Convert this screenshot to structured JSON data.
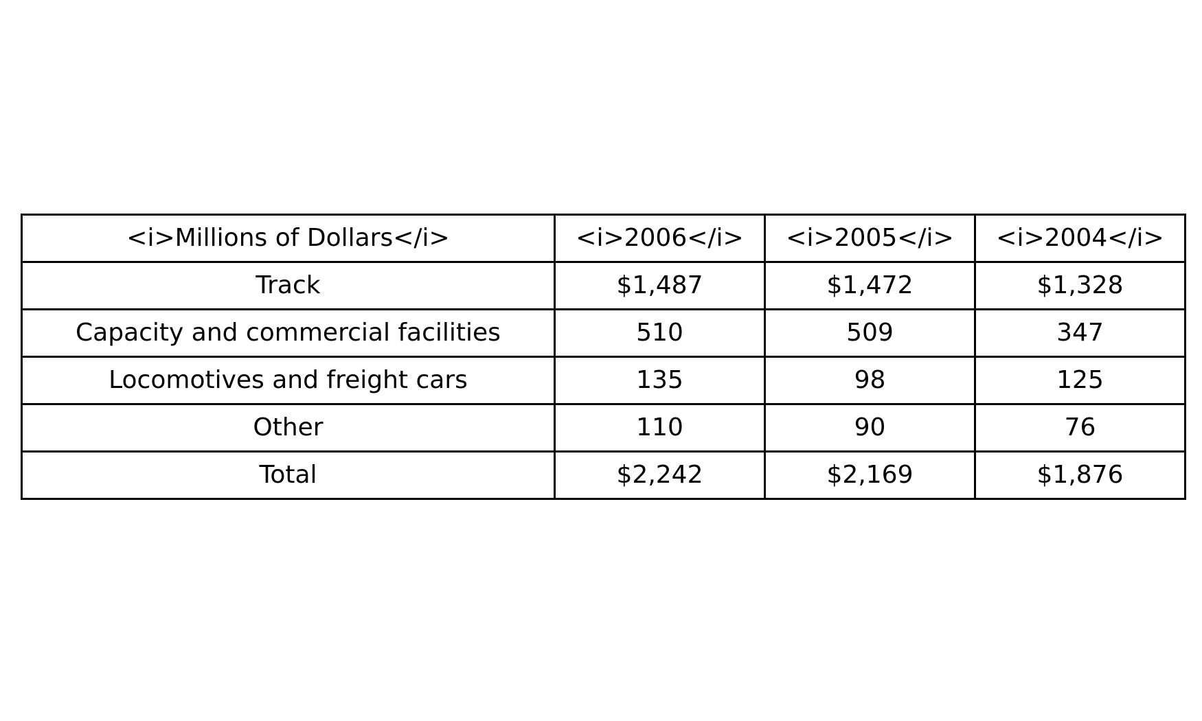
{
  "chart_data": {
    "type": "table",
    "columns": [
      "<i>Millions of Dollars</i>",
      "<i>2006</i>",
      "<i>2005</i>",
      "<i>2004</i>"
    ],
    "rows": [
      [
        "Track",
        "$1,487",
        "$1,472",
        "$1,328"
      ],
      [
        "Capacity and commercial facilities",
        "510",
        "509",
        "347"
      ],
      [
        "Locomotives and freight cars",
        "135",
        "98",
        "125"
      ],
      [
        "Other",
        "110",
        "90",
        "76"
      ],
      [
        "Total",
        "$2,242",
        "$2,169",
        "$1,876"
      ]
    ]
  }
}
